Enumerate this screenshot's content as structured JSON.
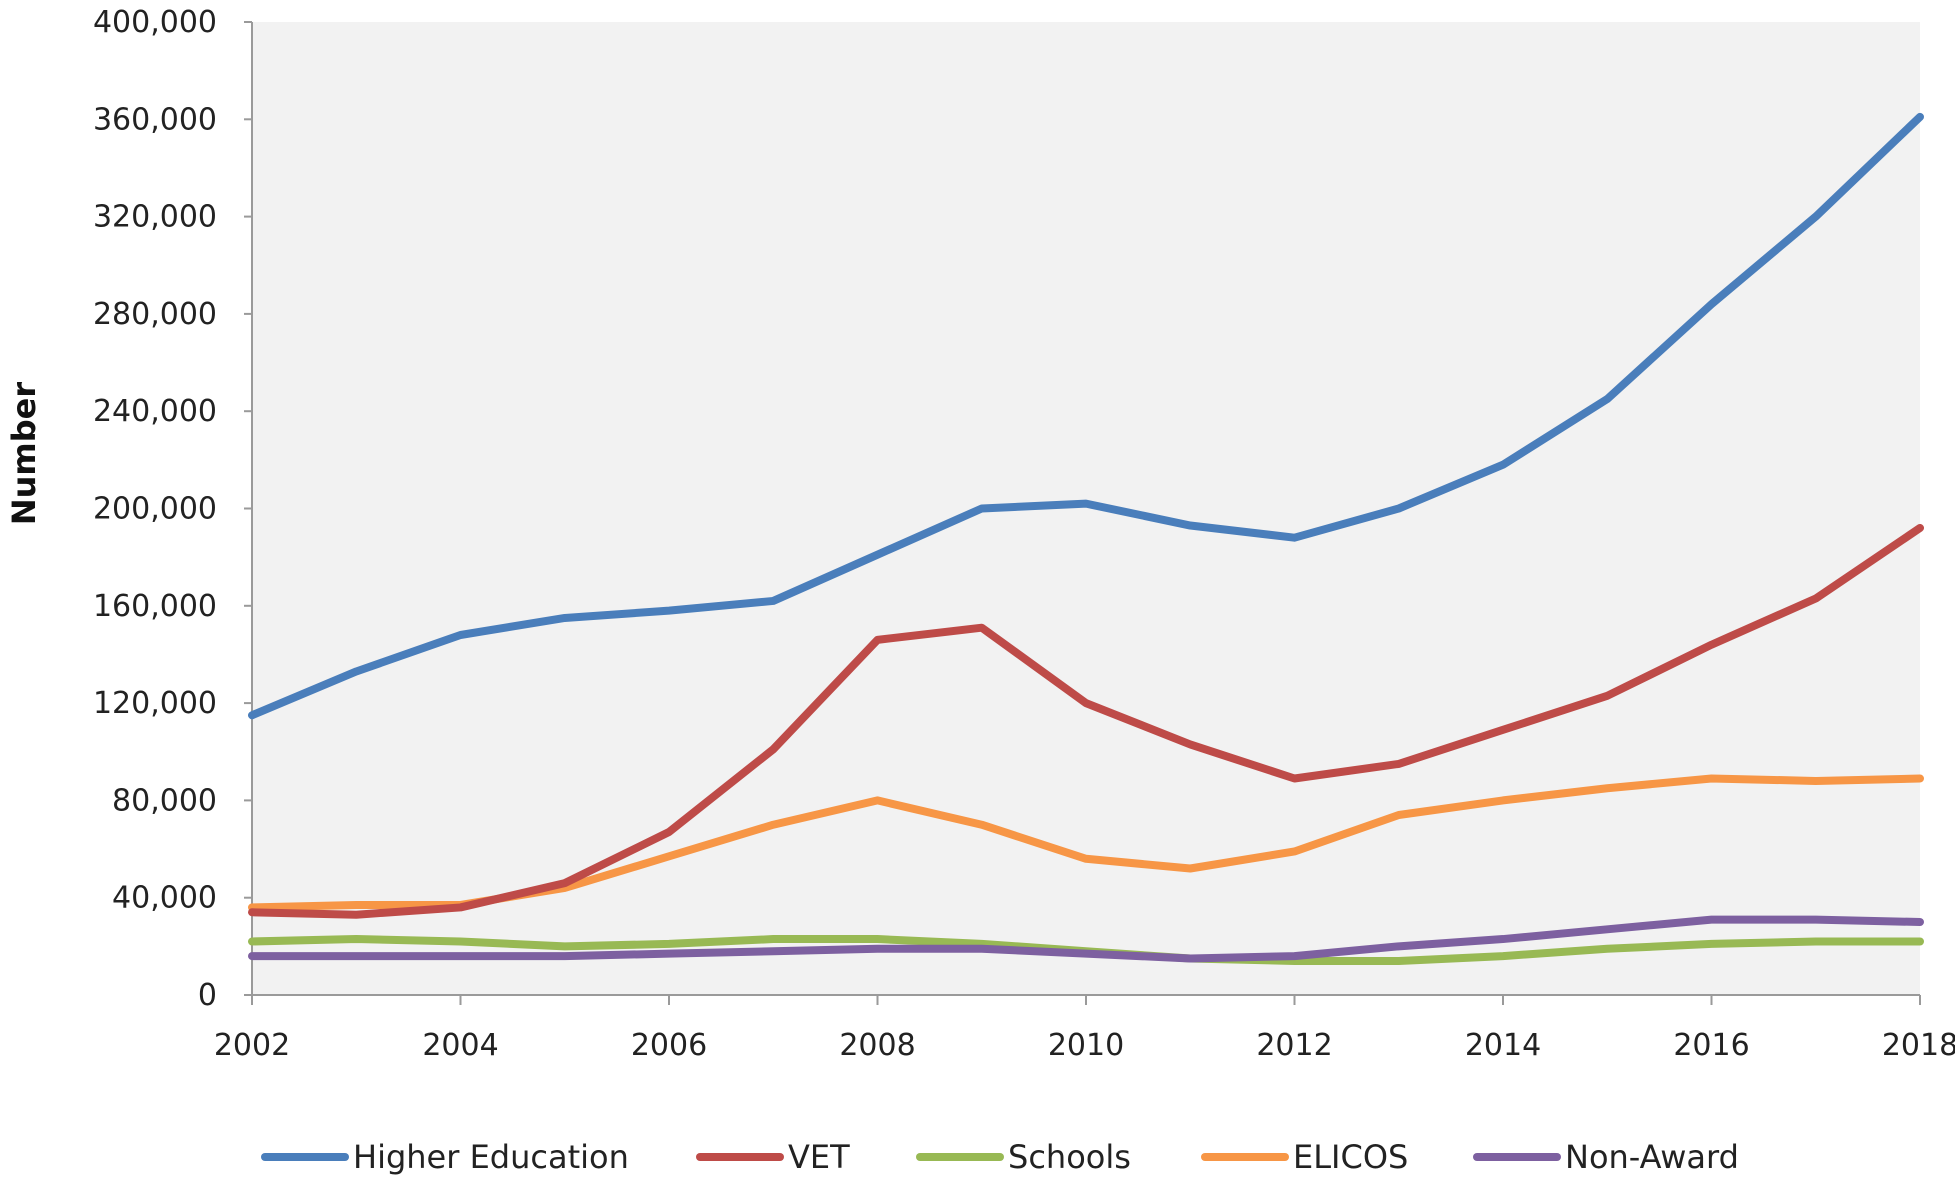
{
  "chart_data": {
    "type": "line",
    "title": "",
    "xlabel": "",
    "ylabel": "Number",
    "xlim": [
      2002,
      2018
    ],
    "ylim": [
      0,
      400000
    ],
    "x_ticks": [
      2002,
      2004,
      2006,
      2008,
      2010,
      2012,
      2014,
      2016,
      2018
    ],
    "x_tick_labels": [
      "2002",
      "2004",
      "2006",
      "2008",
      "2010",
      "2012",
      "2014",
      "2016",
      "2018"
    ],
    "y_ticks": [
      0,
      40000,
      80000,
      120000,
      160000,
      200000,
      240000,
      280000,
      320000,
      360000,
      400000
    ],
    "y_tick_labels": [
      "0",
      "40,000",
      "80,000",
      "120,000",
      "160,000",
      "200,000",
      "240,000",
      "280,000",
      "320,000",
      "360,000",
      "400,000"
    ],
    "grid": false,
    "legend_position": "bottom",
    "x": [
      2002,
      2003,
      2004,
      2005,
      2006,
      2007,
      2008,
      2009,
      2010,
      2011,
      2012,
      2013,
      2014,
      2015,
      2016,
      2017,
      2018
    ],
    "series": [
      {
        "name": "Higher Education",
        "color": "#4a7ebb",
        "values": [
          115000,
          133000,
          148000,
          155000,
          158000,
          162000,
          181000,
          200000,
          202000,
          193000,
          188000,
          200000,
          218000,
          245000,
          284000,
          320000,
          361000
        ]
      },
      {
        "name": "VET",
        "color": "#be4b48",
        "values": [
          34000,
          33000,
          36000,
          46000,
          67000,
          101000,
          146000,
          151000,
          120000,
          103000,
          89000,
          95000,
          109000,
          123000,
          144000,
          163000,
          192000
        ]
      },
      {
        "name": "Schools",
        "color": "#98b954",
        "values": [
          22000,
          23000,
          22000,
          20000,
          21000,
          23000,
          23000,
          21000,
          18000,
          15000,
          14000,
          14000,
          16000,
          19000,
          21000,
          22000,
          22000
        ]
      },
      {
        "name": "ELICOS",
        "color": "#f79646",
        "values": [
          36000,
          37000,
          37000,
          44000,
          57000,
          70000,
          80000,
          70000,
          56000,
          52000,
          59000,
          74000,
          80000,
          85000,
          89000,
          88000,
          89000
        ]
      },
      {
        "name": "Non-Award",
        "color": "#7d60a0",
        "values": [
          16000,
          16000,
          16000,
          16000,
          17000,
          18000,
          19000,
          19000,
          17000,
          15000,
          16000,
          20000,
          23000,
          27000,
          31000,
          31000,
          30000
        ]
      }
    ]
  }
}
